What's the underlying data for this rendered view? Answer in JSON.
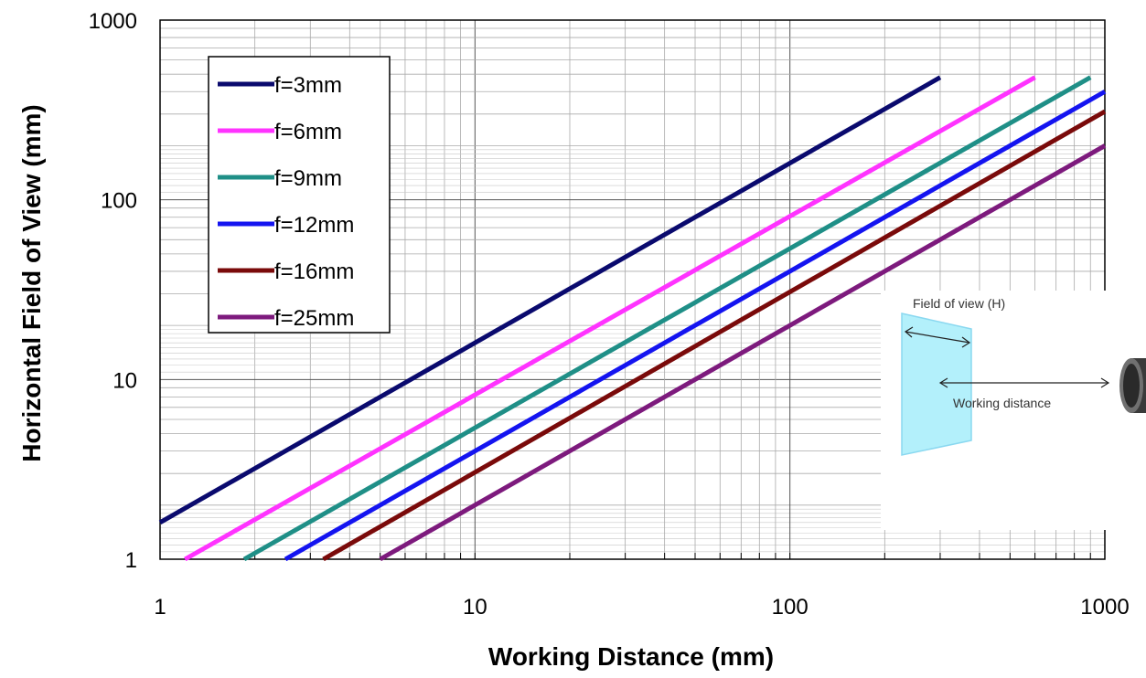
{
  "chart_data": {
    "type": "line",
    "xlabel": "Working Distance (mm)",
    "ylabel": "Horizontal Field of View (mm)",
    "x_scale": "log",
    "y_scale": "log",
    "xlim": [
      1,
      1000
    ],
    "ylim": [
      1,
      1000
    ],
    "x_ticks": [
      {
        "value": 1,
        "label": "1"
      },
      {
        "value": 10,
        "label": "10"
      },
      {
        "value": 100,
        "label": "100"
      },
      {
        "value": 1000,
        "label": "1000"
      }
    ],
    "y_ticks": [
      {
        "value": 1,
        "label": "1"
      },
      {
        "value": 10,
        "label": "10"
      },
      {
        "value": 100,
        "label": "100"
      },
      {
        "value": 1000,
        "label": "1000"
      }
    ],
    "grid": true,
    "legend_position": "top-left",
    "series": [
      {
        "name": "f=3mm",
        "color": "#0a0a6e",
        "x": [
          1,
          300
        ],
        "y": [
          1.6,
          480
        ]
      },
      {
        "name": "f=6mm",
        "color": "#ff33ff",
        "x": [
          1.2,
          600
        ],
        "y": [
          1,
          480
        ]
      },
      {
        "name": "f=9mm",
        "color": "#1f8f87",
        "x": [
          1.85,
          900
        ],
        "y": [
          1,
          480
        ]
      },
      {
        "name": "f=12mm",
        "color": "#1414f0",
        "x": [
          2.5,
          1000
        ],
        "y": [
          1,
          400
        ]
      },
      {
        "name": "f=16mm",
        "color": "#7a0a0a",
        "x": [
          3.3,
          1000
        ],
        "y": [
          1,
          310
        ]
      },
      {
        "name": "f=25mm",
        "color": "#7d1a7d",
        "x": [
          5.0,
          1000
        ],
        "y": [
          1,
          200
        ]
      }
    ],
    "inset_diagram": {
      "fov_label": "Field of view (H)",
      "wd_label": "Working distance"
    }
  }
}
